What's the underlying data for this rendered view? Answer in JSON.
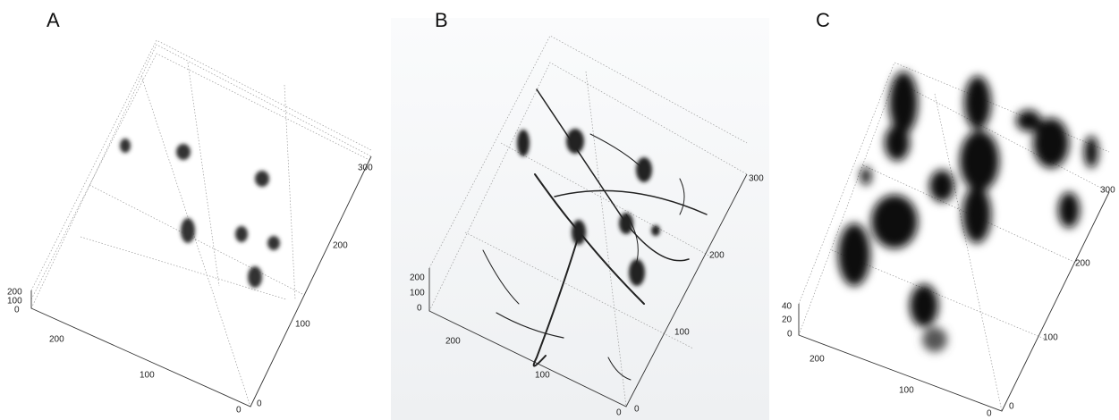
{
  "panels": [
    {
      "label": "A",
      "z_ticks": [
        "200",
        "100",
        "0"
      ],
      "left_ticks": [
        "200",
        "100",
        "0"
      ],
      "right_ticks": [
        "0",
        "100",
        "200",
        "300"
      ]
    },
    {
      "label": "B",
      "z_ticks": [
        "200",
        "100",
        "0"
      ],
      "left_ticks": [
        "200",
        "100",
        "0"
      ],
      "right_ticks": [
        "0",
        "100",
        "200",
        "300"
      ]
    },
    {
      "label": "C",
      "z_ticks": [
        "40",
        "20",
        "0"
      ],
      "left_ticks": [
        "200",
        "100",
        "0"
      ],
      "right_ticks": [
        "0",
        "100",
        "200",
        "300"
      ]
    }
  ]
}
